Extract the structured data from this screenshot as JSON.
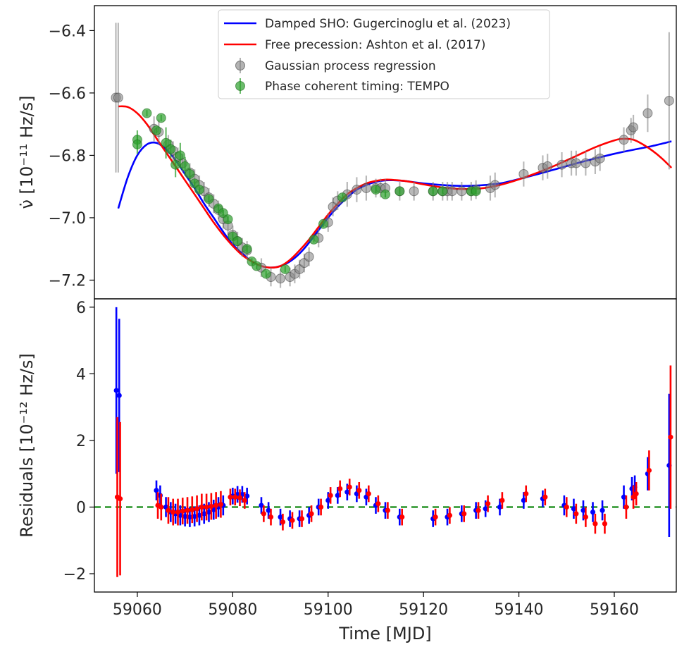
{
  "chart_data": [
    {
      "type": "line",
      "panel": "top",
      "ylabel": "ν̇ [10⁻¹¹ Hz/s]",
      "xlim": [
        59051,
        59173
      ],
      "ylim": [
        -7.26,
        -6.32
      ],
      "yticks": [
        "−6.4",
        "−6.6",
        "−6.8",
        "−7.0",
        "−7.2"
      ],
      "ytick_values": [
        -6.4,
        -6.6,
        -6.8,
        -7.0,
        -7.2
      ],
      "legend_position": "top-center",
      "legend": [
        {
          "label": "Damped SHO: Gugercinoglu et al. (2023)",
          "kind": "line",
          "color": "#0000ff"
        },
        {
          "label": "Free precession: Ashton et al. (2017)",
          "kind": "line",
          "color": "#ff0000"
        },
        {
          "label": "Gaussian process regression",
          "kind": "errorbar",
          "color": "#808080"
        },
        {
          "label": "Phase coherent timing: TEMPO",
          "kind": "errorbar",
          "color": "#2ca02c"
        }
      ],
      "series": [
        {
          "name": "Damped SHO: Gugercinoglu et al. (2023)",
          "color": "#0000ff",
          "x": [
            59056,
            59058,
            59060,
            59062,
            59064,
            59066,
            59068,
            59070,
            59072,
            59074,
            59076,
            59078,
            59080,
            59082,
            59084,
            59086,
            59088,
            59090,
            59092,
            59094,
            59096,
            59098,
            59100,
            59102,
            59104,
            59106,
            59108,
            59110,
            59112,
            59114,
            59116,
            59118,
            59120,
            59124,
            59128,
            59132,
            59136,
            59140,
            59144,
            59148,
            59152,
            59156,
            59160,
            59164,
            59168,
            59172
          ],
          "y": [
            -6.97,
            -6.87,
            -6.8,
            -6.765,
            -6.76,
            -6.78,
            -6.815,
            -6.86,
            -6.905,
            -6.955,
            -7.0,
            -7.045,
            -7.085,
            -7.115,
            -7.14,
            -7.155,
            -7.16,
            -7.155,
            -7.14,
            -7.115,
            -7.08,
            -7.04,
            -7.0,
            -6.965,
            -6.935,
            -6.91,
            -6.895,
            -6.885,
            -6.88,
            -6.88,
            -6.882,
            -6.886,
            -6.89,
            -6.895,
            -6.898,
            -6.896,
            -6.89,
            -6.876,
            -6.86,
            -6.843,
            -6.826,
            -6.81,
            -6.795,
            -6.782,
            -6.77,
            -6.755
          ]
        },
        {
          "name": "Free precession: Ashton et al. (2017)",
          "color": "#ff0000",
          "x": [
            59056,
            59058,
            59060,
            59062,
            59064,
            59066,
            59068,
            59070,
            59072,
            59074,
            59076,
            59078,
            59080,
            59082,
            59084,
            59086,
            59088,
            59090,
            59092,
            59094,
            59096,
            59098,
            59100,
            59102,
            59104,
            59106,
            59108,
            59110,
            59112,
            59114,
            59116,
            59118,
            59120,
            59124,
            59128,
            59132,
            59136,
            59140,
            59144,
            59148,
            59152,
            59156,
            59160,
            59162,
            59164,
            59166,
            59168,
            59170,
            59172
          ],
          "y": [
            -6.643,
            -6.645,
            -6.665,
            -6.7,
            -6.745,
            -6.79,
            -6.835,
            -6.88,
            -6.925,
            -6.97,
            -7.015,
            -7.055,
            -7.09,
            -7.12,
            -7.14,
            -7.155,
            -7.16,
            -7.155,
            -7.135,
            -7.105,
            -7.07,
            -7.03,
            -6.99,
            -6.955,
            -6.925,
            -6.905,
            -6.89,
            -6.882,
            -6.878,
            -6.879,
            -6.882,
            -6.887,
            -6.893,
            -6.903,
            -6.908,
            -6.906,
            -6.895,
            -6.877,
            -6.855,
            -6.83,
            -6.802,
            -6.774,
            -6.752,
            -6.747,
            -6.75,
            -6.765,
            -6.785,
            -6.81,
            -6.84
          ]
        },
        {
          "name": "Gaussian process regression",
          "color": "#808080",
          "type": "errorbar",
          "x": [
            59055.5,
            59056,
            59063.5,
            59064.5,
            59066.5,
            59067.5,
            59068.5,
            59069.5,
            59071,
            59072,
            59073,
            59074,
            59075,
            59076,
            59077,
            59078,
            59079,
            59080,
            59081,
            59082,
            59083,
            59086,
            59088,
            59090,
            59092,
            59093,
            59094,
            59095,
            59096,
            59098,
            59100,
            59101,
            59102,
            59104,
            59106,
            59108,
            59110,
            59111,
            59112,
            59115,
            59118,
            59122,
            59124,
            59125,
            59126,
            59128,
            59130,
            59131,
            59134,
            59135,
            59141,
            59145,
            59146,
            59149,
            59151,
            59152,
            59154,
            59156,
            59157,
            59162,
            59163.5,
            59164,
            59167,
            59171.5
          ],
          "y": [
            -6.615,
            -6.615,
            -6.715,
            -6.725,
            -6.765,
            -6.785,
            -6.805,
            -6.825,
            -6.855,
            -6.875,
            -6.895,
            -6.915,
            -6.935,
            -6.955,
            -6.975,
            -7.005,
            -7.025,
            -7.055,
            -7.075,
            -7.095,
            -7.105,
            -7.16,
            -7.19,
            -7.195,
            -7.19,
            -7.18,
            -7.165,
            -7.145,
            -7.125,
            -7.065,
            -7.015,
            -6.965,
            -6.945,
            -6.925,
            -6.91,
            -6.905,
            -6.905,
            -6.905,
            -6.905,
            -6.915,
            -6.915,
            -6.915,
            -6.915,
            -6.915,
            -6.915,
            -6.915,
            -6.915,
            -6.91,
            -6.905,
            -6.895,
            -6.86,
            -6.84,
            -6.835,
            -6.83,
            -6.825,
            -6.825,
            -6.825,
            -6.82,
            -6.81,
            -6.75,
            -6.72,
            -6.71,
            -6.665,
            -6.625
          ],
          "err": [
            0.24,
            0.24,
            0.04,
            0.04,
            0.03,
            0.03,
            0.03,
            0.03,
            0.03,
            0.03,
            0.03,
            0.03,
            0.03,
            0.03,
            0.03,
            0.03,
            0.03,
            0.03,
            0.03,
            0.03,
            0.03,
            0.03,
            0.03,
            0.03,
            0.03,
            0.03,
            0.03,
            0.03,
            0.03,
            0.03,
            0.03,
            0.03,
            0.03,
            0.04,
            0.04,
            0.04,
            0.03,
            0.03,
            0.03,
            0.03,
            0.03,
            0.03,
            0.03,
            0.03,
            0.03,
            0.03,
            0.03,
            0.03,
            0.04,
            0.04,
            0.04,
            0.04,
            0.04,
            0.04,
            0.04,
            0.04,
            0.04,
            0.04,
            0.04,
            0.04,
            0.04,
            0.04,
            0.06,
            0.22
          ]
        },
        {
          "name": "Phase coherent timing: TEMPO",
          "color": "#2ca02c",
          "type": "errorbar",
          "x": [
            59060,
            59060,
            59062,
            59064,
            59065,
            59066,
            59067,
            59068,
            59069,
            59070,
            59071,
            59072,
            59073,
            59075,
            59077,
            59078,
            59079,
            59080,
            59081,
            59083,
            59084,
            59085,
            59087,
            59091,
            59097,
            59099,
            59103,
            59110,
            59112,
            59115,
            59122,
            59124,
            59130,
            59131
          ],
          "y": [
            -6.75,
            -6.765,
            -6.665,
            -6.72,
            -6.68,
            -6.76,
            -6.78,
            -6.83,
            -6.8,
            -6.835,
            -6.86,
            -6.89,
            -6.91,
            -6.94,
            -6.97,
            -6.985,
            -7.005,
            -7.06,
            -7.075,
            -7.1,
            -7.14,
            -7.155,
            -7.18,
            -7.165,
            -7.07,
            -7.02,
            -6.935,
            -6.91,
            -6.925,
            -6.915,
            -6.915,
            -6.915,
            -6.915,
            -6.915
          ],
          "err": [
            0.03,
            0.03,
            0.01,
            0.01,
            0.01,
            0.05,
            0.03,
            0.04,
            0.04,
            0.03,
            0.02,
            0.01,
            0.01,
            0.01,
            0.01,
            0.01,
            0.01,
            0.01,
            0.01,
            0.01,
            0.01,
            0.01,
            0.01,
            0.01,
            0.01,
            0.01,
            0.01,
            0.01,
            0.01,
            0.01,
            0.01,
            0.01,
            0.01,
            0.01
          ]
        }
      ]
    },
    {
      "type": "scatter",
      "panel": "bottom",
      "xlabel": "Time [MJD]",
      "ylabel": "Residuals [10⁻¹² Hz/s]",
      "xlim": [
        59051,
        59173
      ],
      "ylim": [
        -2.55,
        6.25
      ],
      "xticks": [
        "59060",
        "59080",
        "59100",
        "59120",
        "59140",
        "59160"
      ],
      "xtick_values": [
        59060,
        59080,
        59100,
        59120,
        59140,
        59160
      ],
      "yticks": [
        "6",
        "4",
        "2",
        "0",
        "−2"
      ],
      "ytick_values": [
        6,
        4,
        2,
        0,
        -2
      ],
      "zero_line": {
        "y": 0,
        "color": "#008000",
        "style": "dashed"
      },
      "series": [
        {
          "color": "#0000ff",
          "x": [
            59055.6,
            59056.2,
            59064,
            59064.8,
            59066,
            59067,
            59068,
            59069,
            59070,
            59071,
            59072,
            59073,
            59074,
            59075,
            59076,
            59077,
            59078,
            59080,
            59081,
            59082,
            59083,
            59086,
            59087.5,
            59090,
            59092,
            59094,
            59096,
            59098,
            59100,
            59102,
            59104,
            59106,
            59108,
            59110,
            59112,
            59115,
            59122,
            59125,
            59128,
            59131,
            59133,
            59136,
            59141,
            59145,
            59149.5,
            59151.5,
            59153.5,
            59155.5,
            59157.5,
            59162,
            59163.7,
            59164.3,
            59167,
            59171.5
          ],
          "y": [
            3.5,
            3.35,
            0.5,
            0.35,
            0.0,
            -0.15,
            -0.2,
            -0.25,
            -0.28,
            -0.3,
            -0.28,
            -0.25,
            -0.2,
            -0.15,
            -0.08,
            0.0,
            0.05,
            0.33,
            0.38,
            0.38,
            0.33,
            0.05,
            -0.1,
            -0.3,
            -0.35,
            -0.35,
            -0.25,
            0.0,
            0.2,
            0.35,
            0.45,
            0.4,
            0.3,
            0.05,
            -0.1,
            -0.3,
            -0.35,
            -0.3,
            -0.2,
            -0.1,
            -0.05,
            0.0,
            0.2,
            0.25,
            0.05,
            -0.05,
            -0.1,
            -0.15,
            -0.1,
            0.3,
            0.55,
            0.6,
            1.0,
            1.25
          ],
          "err": [
            2.5,
            2.3,
            0.3,
            0.3,
            0.3,
            0.3,
            0.3,
            0.3,
            0.3,
            0.3,
            0.3,
            0.3,
            0.3,
            0.3,
            0.3,
            0.3,
            0.3,
            0.25,
            0.25,
            0.25,
            0.25,
            0.25,
            0.25,
            0.25,
            0.25,
            0.25,
            0.25,
            0.25,
            0.25,
            0.25,
            0.25,
            0.25,
            0.25,
            0.25,
            0.25,
            0.25,
            0.25,
            0.25,
            0.25,
            0.25,
            0.25,
            0.25,
            0.25,
            0.25,
            0.3,
            0.3,
            0.3,
            0.3,
            0.3,
            0.35,
            0.35,
            0.35,
            0.5,
            2.15
          ]
        },
        {
          "color": "#ff0000",
          "x": [
            59055.8,
            59056.4,
            59064.3,
            59065,
            59066.5,
            59067.5,
            59068.5,
            59069.5,
            59070.5,
            59071.5,
            59072.5,
            59073.5,
            59074.5,
            59075.5,
            59076.5,
            59077.5,
            59079.5,
            59080.5,
            59081.5,
            59082.5,
            59086.5,
            59088,
            59090.5,
            59092.5,
            59094.5,
            59096.5,
            59098.5,
            59100.5,
            59102.5,
            59104.5,
            59106.5,
            59108.5,
            59110.5,
            59112.5,
            59115.5,
            59122.5,
            59125.5,
            59128.5,
            59131.5,
            59133.5,
            59136.5,
            59141.5,
            59145.5,
            59150,
            59152,
            59154,
            59156,
            59158,
            59162.5,
            59164,
            59164.6,
            59167.3,
            59171.8
          ],
          "y": [
            0.3,
            0.25,
            0.05,
            0.0,
            -0.1,
            -0.15,
            -0.15,
            -0.12,
            -0.1,
            -0.08,
            -0.05,
            0.0,
            0.0,
            0.02,
            0.05,
            0.08,
            0.3,
            0.3,
            0.28,
            0.2,
            -0.2,
            -0.3,
            -0.45,
            -0.4,
            -0.35,
            -0.2,
            0.0,
            0.35,
            0.55,
            0.6,
            0.5,
            0.4,
            0.1,
            -0.1,
            -0.3,
            -0.3,
            -0.25,
            -0.2,
            -0.1,
            0.1,
            0.2,
            0.4,
            0.3,
            0.0,
            -0.2,
            -0.3,
            -0.5,
            -0.5,
            0.0,
            0.3,
            0.4,
            1.1,
            2.1
          ],
          "err": [
            2.4,
            2.3,
            0.4,
            0.4,
            0.4,
            0.4,
            0.4,
            0.4,
            0.4,
            0.4,
            0.4,
            0.4,
            0.4,
            0.4,
            0.4,
            0.4,
            0.25,
            0.25,
            0.25,
            0.25,
            0.25,
            0.25,
            0.25,
            0.25,
            0.25,
            0.25,
            0.25,
            0.25,
            0.25,
            0.25,
            0.25,
            0.25,
            0.25,
            0.25,
            0.25,
            0.25,
            0.25,
            0.25,
            0.25,
            0.25,
            0.25,
            0.25,
            0.25,
            0.3,
            0.3,
            0.3,
            0.3,
            0.3,
            0.35,
            0.35,
            0.35,
            0.6,
            2.15
          ]
        }
      ]
    }
  ]
}
